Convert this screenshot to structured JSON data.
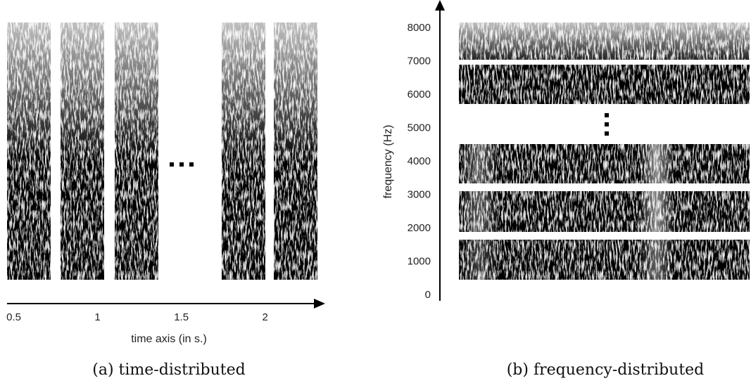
{
  "panels": [
    {
      "axis_label": "time axis (in s.)",
      "ticks": [
        0.5,
        1,
        1.5,
        2
      ],
      "lim": [
        0.46,
        2.35
      ],
      "caption": "(a) time-distributed"
    },
    {
      "axis_label": "frequency (Hz)",
      "ticks": [
        0,
        1000,
        2000,
        3000,
        4000,
        5000,
        6000,
        7000,
        8000
      ],
      "lim": [
        -170,
        8800
      ],
      "caption": "(b) frequency-distributed"
    }
  ]
}
